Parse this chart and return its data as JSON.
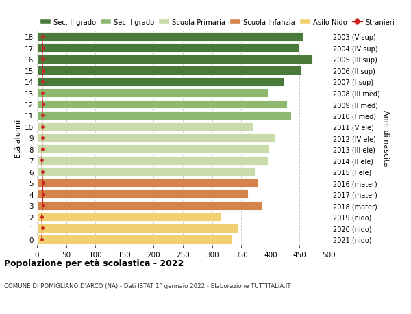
{
  "ages": [
    0,
    1,
    2,
    3,
    4,
    5,
    6,
    7,
    8,
    9,
    10,
    11,
    12,
    13,
    14,
    15,
    16,
    17,
    18
  ],
  "values": [
    335,
    345,
    315,
    385,
    362,
    378,
    373,
    395,
    397,
    408,
    370,
    435,
    428,
    395,
    422,
    453,
    472,
    450,
    455
  ],
  "right_labels": [
    "2021 (nido)",
    "2020 (nido)",
    "2019 (nido)",
    "2018 (mater)",
    "2017 (mater)",
    "2016 (mater)",
    "2015 (I ele)",
    "2014 (II ele)",
    "2013 (III ele)",
    "2012 (IV ele)",
    "2011 (V ele)",
    "2010 (I med)",
    "2009 (II med)",
    "2008 (III med)",
    "2007 (I sup)",
    "2006 (II sup)",
    "2005 (III sup)",
    "2004 (IV sup)",
    "2003 (V sup)"
  ],
  "bar_colors": [
    "#f0d070",
    "#f0d070",
    "#f0d070",
    "#d4834a",
    "#d4834a",
    "#d4834a",
    "#c8dba8",
    "#c8dba8",
    "#c8dba8",
    "#c8dba8",
    "#c8dba8",
    "#8db870",
    "#8db870",
    "#8db870",
    "#4a7a3a",
    "#4a7a3a",
    "#4a7a3a",
    "#4a7a3a",
    "#4a7a3a"
  ],
  "stranieri_x": [
    8,
    9,
    8,
    10,
    10,
    10,
    9,
    8,
    9,
    9,
    9,
    9,
    10,
    9,
    9,
    10,
    9,
    10,
    9
  ],
  "legend_labels": [
    "Sec. II grado",
    "Sec. I grado",
    "Scuola Primaria",
    "Scuola Infanzia",
    "Asilo Nido",
    "Stranieri"
  ],
  "legend_colors": [
    "#4a7a3a",
    "#8db870",
    "#c8dba8",
    "#d4834a",
    "#f0d070",
    "#cc2222"
  ],
  "ylabel": "Età alunni",
  "right_ylabel": "Anni di nascita",
  "title": "Popolazione per età scolastica - 2022",
  "subtitle": "COMUNE DI POMIGLIANO D'ARCO (NA) - Dati ISTAT 1° gennaio 2022 - Elaborazione TUTTITALIA.IT",
  "xlim": [
    0,
    500
  ],
  "xticks": [
    0,
    50,
    100,
    150,
    200,
    250,
    300,
    350,
    400,
    450,
    500
  ],
  "background_color": "#ffffff",
  "grid_color": "#cccccc",
  "bar_height": 0.78
}
